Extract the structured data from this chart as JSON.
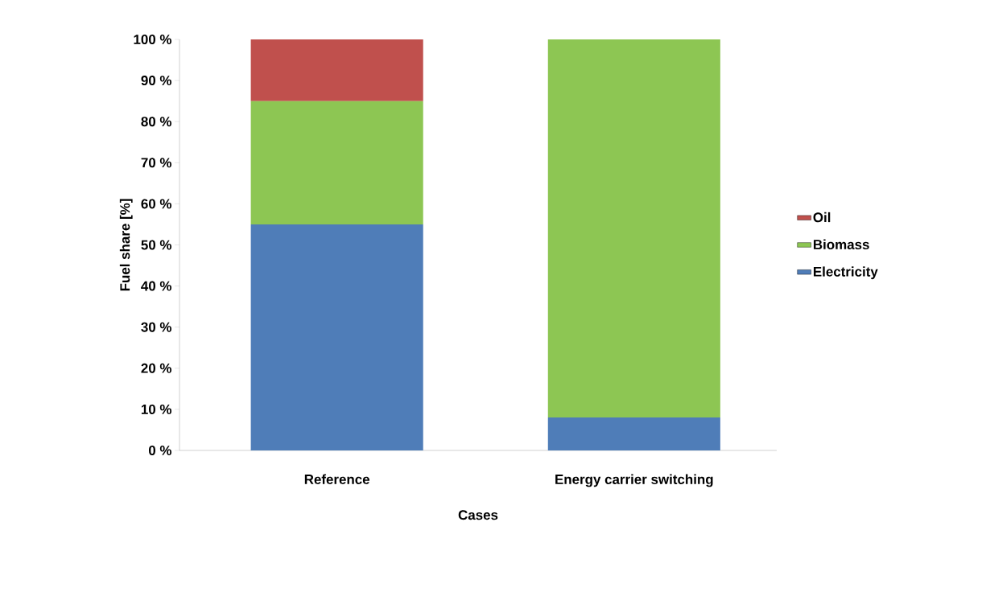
{
  "chart_data": {
    "type": "bar",
    "stacked": true,
    "xlabel": "Cases",
    "ylabel": "Fuel share [%]",
    "categories": [
      "Reference",
      "Energy carrier switching"
    ],
    "series": [
      {
        "name": "Electricity",
        "color": "#4f7db8",
        "values": [
          55,
          8
        ]
      },
      {
        "name": "Biomass",
        "color": "#8dc653",
        "values": [
          30,
          92
        ]
      },
      {
        "name": "Oil",
        "color": "#c0504d",
        "values": [
          15,
          0
        ]
      }
    ],
    "ylim": [
      0,
      100
    ],
    "yticks": [
      {
        "value": 0,
        "label": "0 %"
      },
      {
        "value": 10,
        "label": "10 %"
      },
      {
        "value": 20,
        "label": "20 %"
      },
      {
        "value": 30,
        "label": "30 %"
      },
      {
        "value": 40,
        "label": "40 %"
      },
      {
        "value": 50,
        "label": "50 %"
      },
      {
        "value": 60,
        "label": "60 %"
      },
      {
        "value": 70,
        "label": "70 %"
      },
      {
        "value": 80,
        "label": "80 %"
      },
      {
        "value": 90,
        "label": "90 %"
      },
      {
        "value": 100,
        "label": "100 %"
      }
    ],
    "legend": "right",
    "grid": false
  }
}
